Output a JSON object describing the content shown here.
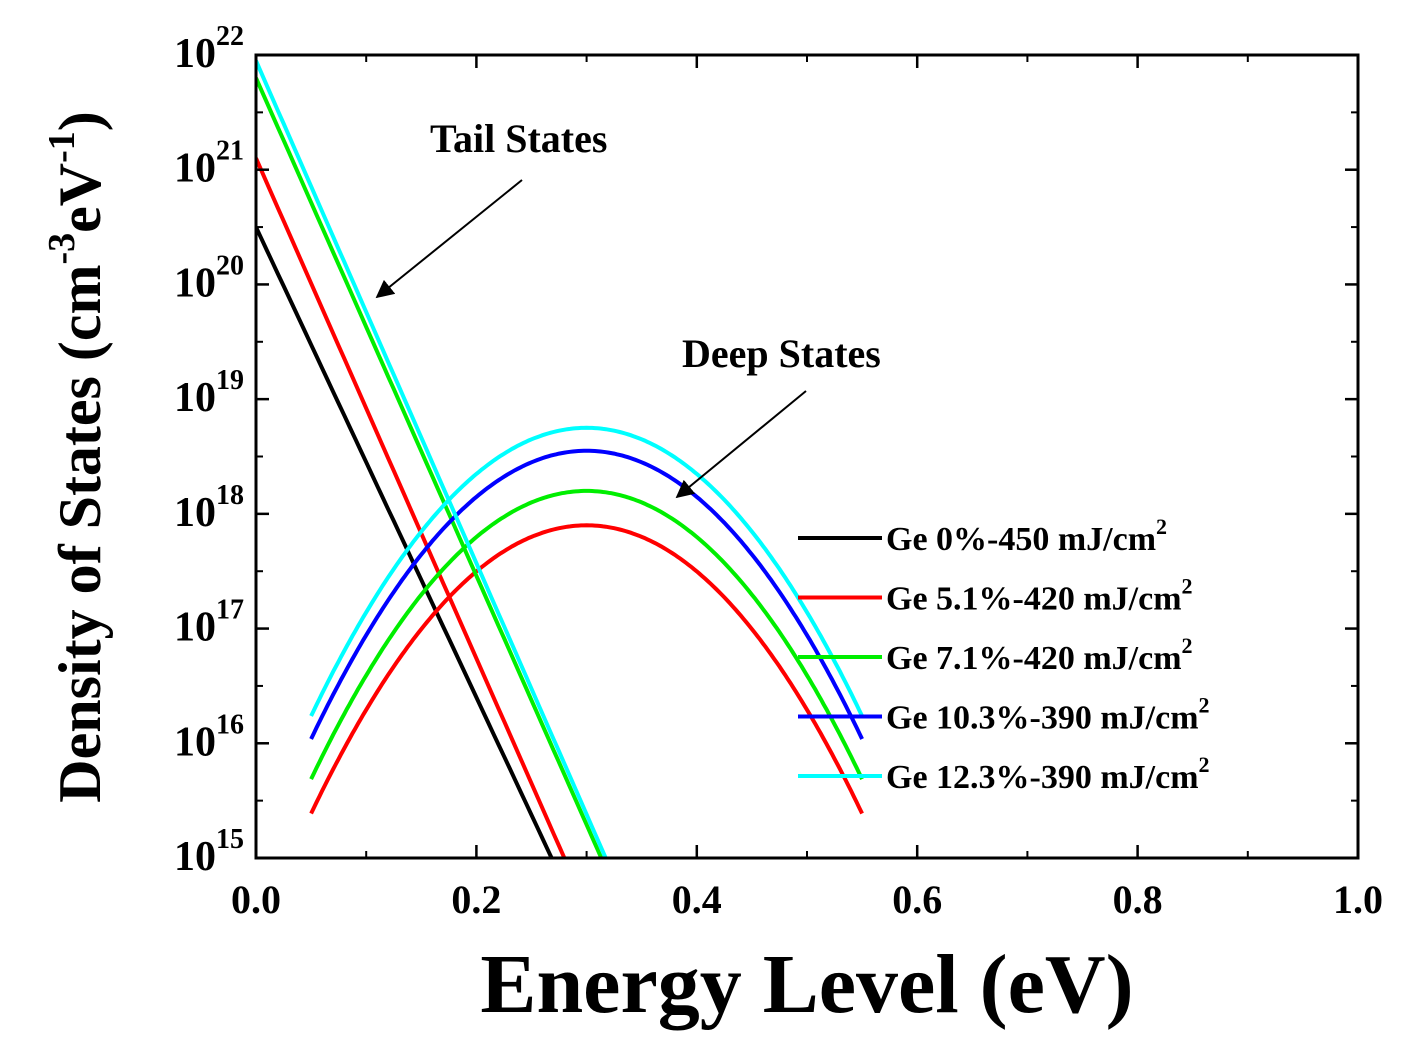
{
  "chart_data": {
    "type": "line",
    "title": "",
    "xlabel": "Energy Level (eV)",
    "ylabel": "Density of States (cm-3eV-1)",
    "ylabel_parts": {
      "main": "Density of States (cm",
      "sup1": "-3",
      "mid": "eV",
      "sup2": "-1",
      "end": ")"
    },
    "xlim": [
      0.0,
      1.0
    ],
    "ylim_log10": [
      15,
      22
    ],
    "y_scale": "log",
    "x_ticks": [
      "0.0",
      "0.2",
      "0.4",
      "0.6",
      "0.8",
      "1.0"
    ],
    "y_ticks": [
      {
        "base": "10",
        "exp": "15"
      },
      {
        "base": "10",
        "exp": "16"
      },
      {
        "base": "10",
        "exp": "17"
      },
      {
        "base": "10",
        "exp": "18"
      },
      {
        "base": "10",
        "exp": "19"
      },
      {
        "base": "10",
        "exp": "20"
      },
      {
        "base": "10",
        "exp": "21"
      },
      {
        "base": "10",
        "exp": "22"
      }
    ],
    "legend_position": "right",
    "series": [
      {
        "name": "Ge 0%-450 mJ/cm",
        "sup": "2",
        "color": "#000000",
        "tail": {
          "log10_at_0": 20.5,
          "slope_decades_per_eV": 20.5
        },
        "deep": null
      },
      {
        "name": "Ge 5.1%-420 mJ/cm",
        "sup": "2",
        "color": "#ff0000",
        "tail": {
          "log10_at_0": 21.1,
          "slope_decades_per_eV": 21.8
        },
        "deep": {
          "peak_log10": 17.9,
          "center_eV": 0.3,
          "sigma_eV": 0.0735
        }
      },
      {
        "name": "Ge 7.1%-420 mJ/cm",
        "sup": "2",
        "color": "#00ee00",
        "tail": {
          "log10_at_0": 21.8,
          "slope_decades_per_eV": 21.7
        },
        "deep": {
          "peak_log10": 18.2,
          "center_eV": 0.3,
          "sigma_eV": 0.0735
        }
      },
      {
        "name": "Ge 10.3%-390 mJ/cm",
        "sup": "2",
        "color": "#0000ff",
        "tail": null,
        "deep": {
          "peak_log10": 18.55,
          "center_eV": 0.3,
          "sigma_eV": 0.0735
        }
      },
      {
        "name": "Ge 12.3%-390 mJ/cm",
        "sup": "2",
        "color": "#00ffff",
        "tail": {
          "log10_at_0": 21.95,
          "slope_decades_per_eV": 21.9
        },
        "deep": {
          "peak_log10": 18.75,
          "center_eV": 0.3,
          "sigma_eV": 0.0735
        }
      }
    ],
    "annotations": [
      {
        "text": "Tail States",
        "target": "tail-curves-near-0.11eV"
      },
      {
        "text": "Deep States",
        "target": "deep-peak-shoulder-near-0.38eV"
      }
    ]
  }
}
